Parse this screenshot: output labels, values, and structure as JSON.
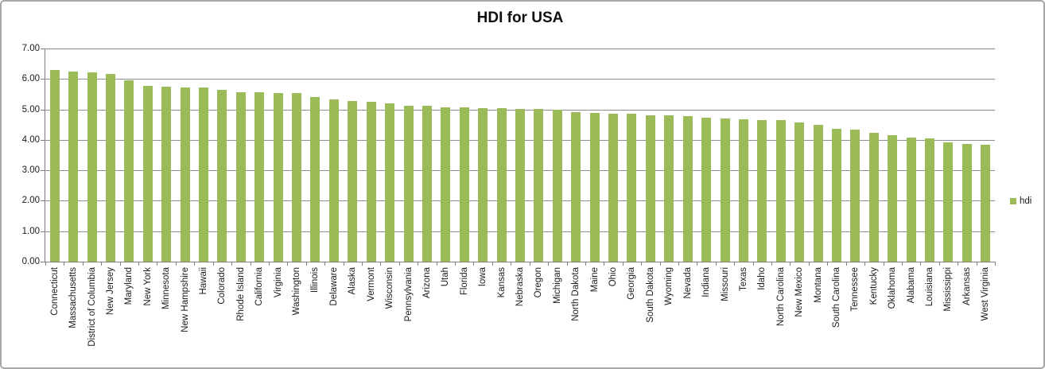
{
  "chart_data": {
    "type": "bar",
    "title": "HDI for USA",
    "xlabel": "",
    "ylabel": "",
    "ylim": [
      0,
      7
    ],
    "ytick_labels": [
      "0.00",
      "1.00",
      "2.00",
      "3.00",
      "4.00",
      "5.00",
      "6.00",
      "7.00"
    ],
    "grid": true,
    "legend_position": "right",
    "legend_label": "hdi",
    "bar_color": "#9bbb59",
    "categories": [
      "Connecticut",
      "Massachusetts",
      "District of Columbia",
      "New Jersey",
      "Maryland",
      "New York",
      "Minnesota",
      "New Hampshire",
      "Hawaii",
      "Colorado",
      "Rhode Island",
      "California",
      "Virginia",
      "Washington",
      "Illinois",
      "Delaware",
      "Alaska",
      "Vermont",
      "Wisconsin",
      "Pennsylvania",
      "Arizona",
      "Utah",
      "Florida",
      "Iowa",
      "Kansas",
      "Nebraska",
      "Oregon",
      "Michigan",
      "North Dakota",
      "Maine",
      "Ohio",
      "Georgia",
      "South Dakota",
      "Wyoming",
      "Nevada",
      "Indiana",
      "Missouri",
      "Texas",
      "Idaho",
      "North Carolina",
      "New Mexico",
      "Montana",
      "South Carolina",
      "Tennessee",
      "Kentucky",
      "Oklahoma",
      "Alabama",
      "Louisiana",
      "Mississippi",
      "Arkansas",
      "West Virginia"
    ],
    "series": [
      {
        "name": "hdi",
        "values": [
          6.3,
          6.24,
          6.21,
          6.16,
          5.96,
          5.77,
          5.74,
          5.73,
          5.73,
          5.65,
          5.56,
          5.56,
          5.54,
          5.53,
          5.41,
          5.33,
          5.27,
          5.26,
          5.21,
          5.12,
          5.11,
          5.08,
          5.07,
          5.05,
          5.03,
          5.02,
          5.02,
          4.98,
          4.92,
          4.88,
          4.86,
          4.86,
          4.81,
          4.8,
          4.77,
          4.74,
          4.69,
          4.67,
          4.64,
          4.64,
          4.56,
          4.49,
          4.36,
          4.33,
          4.23,
          4.15,
          4.07,
          4.05,
          3.93,
          3.87,
          3.84
        ]
      }
    ]
  },
  "colors": {
    "bar": "#9bbb59",
    "gridline": "#8c8c8c",
    "axis": "#7f7f7f",
    "text": "#1a1a1a",
    "frame_border": "#a6a6a6"
  }
}
